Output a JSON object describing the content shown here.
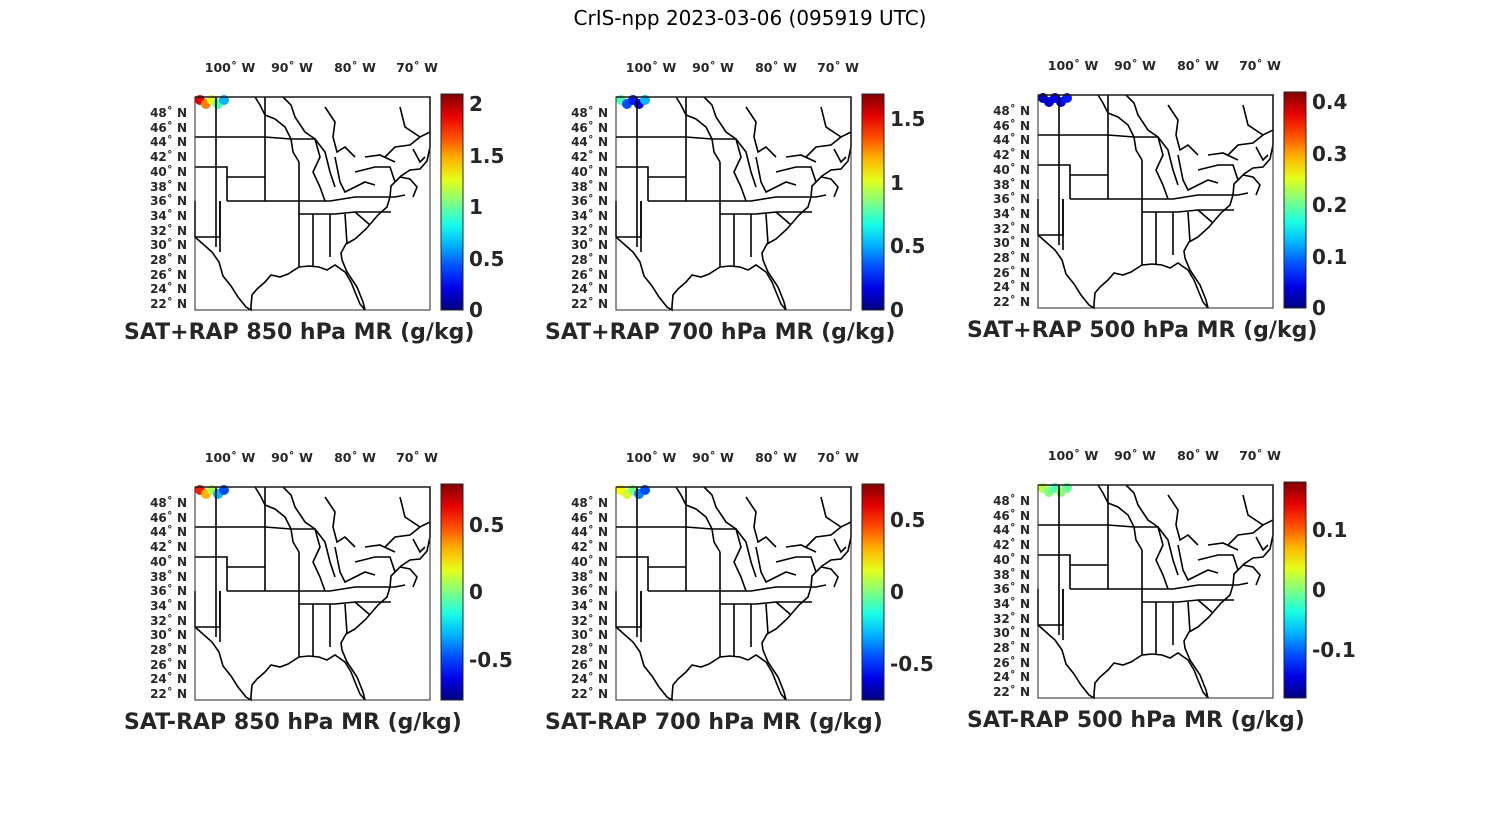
{
  "title": "CrIS-npp 2023-03-06 (095919 UTC)",
  "lon_labels": [
    "100˚ W",
    "90˚ W",
    "80˚ W",
    "70˚ W"
  ],
  "lat_labels": [
    "48˚ N",
    "46˚ N",
    "44˚ N",
    "42˚ N",
    "40˚ N",
    "38˚ N",
    "36˚ N",
    "34˚ N",
    "32˚ N",
    "30˚ N",
    "28˚ N",
    "26˚ N",
    "24˚ N",
    "22˚ N"
  ],
  "colormap": "jet",
  "panels": [
    {
      "caption": "SAT+RAP 850 hPa MR (g/kg)",
      "clim": [
        0,
        2.1
      ],
      "ticks": [
        "0",
        "0.5",
        "1",
        "1.5",
        "2"
      ],
      "tick_values": [
        0,
        0.5,
        1,
        1.5,
        2
      ]
    },
    {
      "caption": "SAT+RAP 700 hPa MR (g/kg)",
      "clim": [
        0,
        1.7
      ],
      "ticks": [
        "0",
        "0.5",
        "1",
        "1.5"
      ],
      "tick_values": [
        0,
        0.5,
        1,
        1.5
      ]
    },
    {
      "caption": "SAT+RAP 500 hPa MR (g/kg)",
      "clim": [
        0,
        0.42
      ],
      "ticks": [
        "0",
        "0.1",
        "0.2",
        "0.3",
        "0.4"
      ],
      "tick_values": [
        0,
        0.1,
        0.2,
        0.3,
        0.4
      ]
    },
    {
      "caption": "SAT-RAP 850 hPa MR (g/kg)",
      "clim": [
        -0.8,
        0.8
      ],
      "ticks": [
        "-0.5",
        "0",
        "0.5"
      ],
      "tick_values": [
        -0.5,
        0,
        0.5
      ]
    },
    {
      "caption": "SAT-RAP 700 hPa MR (g/kg)",
      "clim": [
        -0.75,
        0.75
      ],
      "ticks": [
        "-0.5",
        "0",
        "0.5"
      ],
      "tick_values": [
        -0.5,
        0,
        0.5
      ]
    },
    {
      "caption": "SAT-RAP 500 hPa MR (g/kg)",
      "clim": [
        -0.18,
        0.18
      ],
      "ticks": [
        "-0.1",
        "0",
        "0.1"
      ],
      "tick_values": [
        -0.1,
        0,
        0.1
      ]
    }
  ]
}
